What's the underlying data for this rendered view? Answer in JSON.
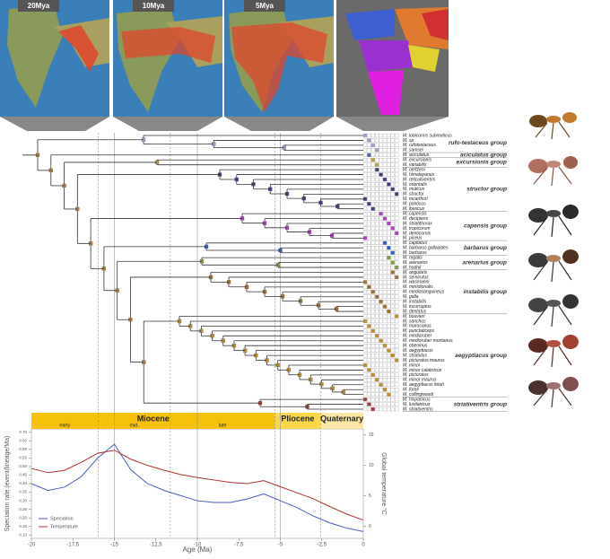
{
  "maps": [
    {
      "label": "20Mya"
    },
    {
      "label": "10Mya"
    },
    {
      "label": "5Mya"
    }
  ],
  "tree": {
    "groups": [
      {
        "name": "rufo-testaceus group",
        "tips": [
          "M. lobicornis submuticus",
          "M. sp.",
          "M. rufotestaceus",
          "M. samsei"
        ]
      },
      {
        "name": "aciculatus group",
        "tips": [
          "M. aciculatus"
        ]
      },
      {
        "name": "excursionis group",
        "tips": [
          "M. excursionis",
          "M. variabilis"
        ]
      },
      {
        "name": "structor group",
        "tips": [
          "M. oertzeni",
          "M. himalayanus",
          "M. reticuliventris",
          "M. orientalis",
          "M. muticus",
          "M. structor",
          "M. mcarthuri",
          "M. ponticus",
          "M. ibericus"
        ]
      },
      {
        "name": "capensis group",
        "tips": [
          "M. capensis",
          "M. decipiens",
          "M. striatithorax",
          "M. tropicorum",
          "M. denticornis",
          "M. piceus"
        ]
      },
      {
        "name": "barbarus group",
        "tips": [
          "M. capitatus",
          "M. barbarus gallaoides",
          "M. barbarus"
        ]
      },
      {
        "name": "arenarius group",
        "tips": [
          "M. regalis",
          "M. arenarius",
          "M. hodnii"
        ]
      },
      {
        "name": "instabilis group",
        "tips": [
          "M. angularis",
          "M. semirufus",
          "M. wasmanni",
          "M. meridionalis",
          "M. mediosanguineus",
          "M. galla",
          "M. instabilis",
          "M. incurruptus",
          "M. dentatus"
        ]
      },
      {
        "name": "aegyptiacus group",
        "tips": [
          "M. bouvieri",
          "M. sanchus",
          "M. marocanus",
          "M. punctaticeps",
          "M. medioruber",
          "M. medioruber montanus",
          "M. ebeninus",
          "M. aegyptiacus",
          "M. striatulus",
          "M. picturatus maurus",
          "M. minor",
          "M. minor calabricus",
          "M. picturatus",
          "M. minor maurus",
          "M. aegyptiacus felah",
          "M. foreli",
          "M. collingwoodi"
        ]
      },
      {
        "name": "striativentris group",
        "tips": [
          "M. hispanicus",
          "M. lusitanicus",
          "M. striativentris"
        ]
      }
    ]
  },
  "chart_data": {
    "type": "line",
    "x_label": "Age (Ma)",
    "y_label": "Speciation rate (event/lineage/Ma)",
    "y2_label": "Global temperature °C",
    "x": [
      -20,
      -19,
      -18,
      -17,
      -16,
      -15,
      -14,
      -13,
      -12,
      -11,
      -10,
      -9,
      -8,
      -7,
      -6,
      -5,
      -4,
      -3,
      -2,
      -1,
      0
    ],
    "series": [
      {
        "name": "Speciation",
        "color": "#4a5cc0",
        "values": [
          0.4,
          0.36,
          0.38,
          0.44,
          0.55,
          0.63,
          0.48,
          0.4,
          0.36,
          0.33,
          0.3,
          0.29,
          0.29,
          0.31,
          0.34,
          0.3,
          0.26,
          0.21,
          0.17,
          0.14,
          0.12
        ]
      },
      {
        "name": "Temperature",
        "color": "#b0302c",
        "axis": "y2",
        "values": [
          9.5,
          8.8,
          9.2,
          10.5,
          12,
          12.5,
          11,
          10,
          9.2,
          8.5,
          8,
          7.6,
          7.2,
          7,
          7.5,
          6.5,
          5.5,
          4.5,
          3.2,
          2,
          1
        ]
      }
    ],
    "xlim": [
      -20,
      0
    ],
    "xticks": [
      -20,
      {
        "value": -17.5,
        "label": "-17,5"
      },
      -15,
      {
        "value": -12.5,
        "label": "-12,5"
      },
      -10,
      {
        "value": -7.5,
        "label": "-7,5"
      },
      -5,
      {
        "value": -2.5,
        "label": "-2,5"
      },
      0
    ],
    "ylim": [
      0.08,
      0.72
    ],
    "yticks": [
      {
        "value": 0.1,
        "label": "0.10"
      },
      {
        "value": 0.15,
        "label": "0.15"
      },
      {
        "value": 0.2,
        "label": "0.20"
      },
      {
        "value": 0.25,
        "label": "0.25"
      },
      {
        "value": 0.3,
        "label": "0.30"
      },
      {
        "value": 0.35,
        "label": "0.35"
      },
      {
        "value": 0.4,
        "label": "0.40"
      },
      {
        "value": 0.45,
        "label": "0.45"
      },
      {
        "value": 0.5,
        "label": "0.50"
      },
      {
        "value": 0.55,
        "label": "0.55"
      },
      {
        "value": 0.6,
        "label": "0.60"
      },
      {
        "value": 0.65,
        "label": "0.65"
      },
      {
        "value": 0.7,
        "label": "0.70"
      }
    ],
    "y2lim": [
      -2,
      16
    ],
    "y2ticks": [
      0,
      5,
      10,
      15
    ],
    "xgrid_lines": [
      -15,
      -10,
      -5
    ],
    "epochs": [
      {
        "name": "Miocene",
        "start": -20,
        "end": -5.33,
        "color": "#f5c10a"
      },
      {
        "name": "Pliocene",
        "start": -5.33,
        "end": -2.58,
        "color": "#f8d84a"
      },
      {
        "name": "Quaternary",
        "start": -2.58,
        "end": 0,
        "color": "#fbe8a6"
      }
    ],
    "subepochs": [
      {
        "name": "early",
        "start": -20,
        "end": -15.97
      },
      {
        "name": "mid.",
        "start": -15.97,
        "end": -11.63
      },
      {
        "name": "late",
        "start": -11.63,
        "end": -5.33
      }
    ],
    "legend": "lower left"
  }
}
